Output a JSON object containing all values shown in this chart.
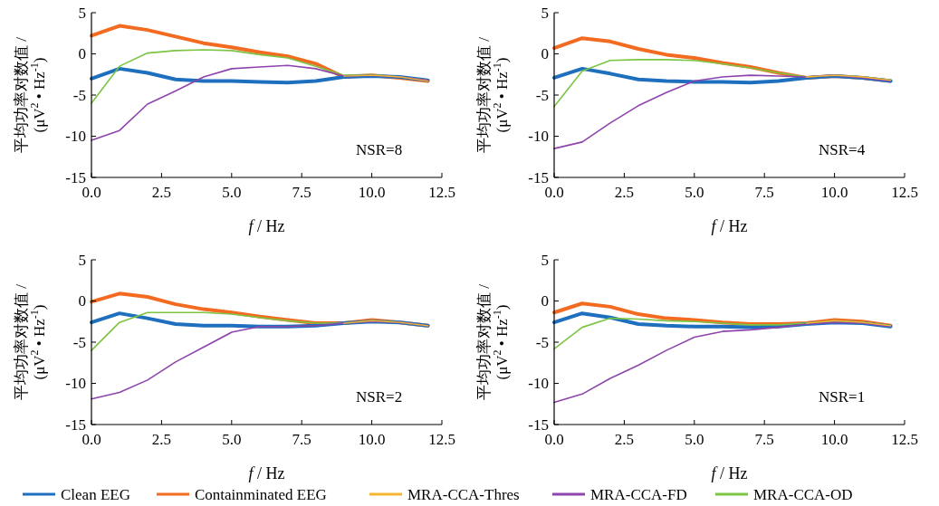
{
  "chart_data": [
    {
      "type": "line",
      "ylabel": "平均功率对数值 / (μV$^{2}$ • Hz$^{-1}$)",
      "xlabel": "f / Hz",
      "annotations": [
        "NSR=8"
      ],
      "x": [
        0,
        1,
        2,
        3,
        4,
        5,
        6,
        7,
        8,
        9,
        10,
        11,
        12
      ],
      "xlim": [
        0,
        12.5
      ],
      "ylim": [
        -15,
        5
      ],
      "xticks": [
        {
          "value": 0,
          "label": "0.0"
        },
        {
          "value": 2.5,
          "label": "2.5"
        },
        {
          "value": 5,
          "label": "5.0"
        },
        {
          "value": 7.5,
          "label": "7.5"
        },
        {
          "value": 10,
          "label": "10.0"
        },
        {
          "value": 12.5,
          "label": "12.5"
        }
      ],
      "yticks": [
        -15,
        -10,
        -5,
        0,
        5
      ],
      "legend": "bottom",
      "series": [
        {
          "name": "Clean EEG",
          "color": "#1f6fbf",
          "values": [
            -3,
            -1.8,
            -2.3,
            -3.1,
            -3.3,
            -3.3,
            -3.4,
            -3.5,
            -3.3,
            -2.8,
            -2.7,
            -2.8,
            -3.2
          ]
        },
        {
          "name": "Containminated EEG",
          "color": "#f26b21",
          "values": [
            2.2,
            3.4,
            2.9,
            2.1,
            1.3,
            0.8,
            0.2,
            -0.3,
            -1.2,
            -2.8,
            -2.6,
            -2.9,
            -3.3
          ]
        },
        {
          "name": "MRA-CCA-Thres",
          "color": "#f5b731",
          "values": [
            null,
            null,
            null,
            null,
            null,
            null,
            null,
            null,
            null,
            -2.7,
            -2.6,
            -2.8,
            -3.3
          ]
        },
        {
          "name": "MRA-CCA-FD",
          "color": "#8e44ad",
          "values": [
            -10.5,
            -9.3,
            -6.1,
            -4.5,
            -2.8,
            -1.8,
            -1.6,
            -1.4,
            -1.8,
            -2.7,
            -2.6,
            -2.8,
            -3.2
          ]
        },
        {
          "name": "MRA-CCA-OD",
          "color": "#7cc444",
          "values": [
            -6,
            -1.5,
            0.1,
            0.4,
            0.5,
            0.4,
            -0.1,
            -0.5,
            -1.5,
            -2.6,
            -2.5,
            -2.8,
            -3.2
          ]
        }
      ]
    },
    {
      "type": "line",
      "ylabel": "平均功率对数值 / (μV$^{2}$ • Hz$^{-1}$)",
      "xlabel": "f / Hz",
      "annotations": [
        "NSR=4"
      ],
      "x": [
        0,
        1,
        2,
        3,
        4,
        5,
        6,
        7,
        8,
        9,
        10,
        11,
        12
      ],
      "xlim": [
        0,
        12.5
      ],
      "ylim": [
        -15,
        5
      ],
      "xticks": [
        {
          "value": 0,
          "label": "0.0"
        },
        {
          "value": 2.5,
          "label": "2.5"
        },
        {
          "value": 5,
          "label": "5.0"
        },
        {
          "value": 7.5,
          "label": "7.5"
        },
        {
          "value": 10,
          "label": "10.0"
        },
        {
          "value": 12.5,
          "label": "12.5"
        }
      ],
      "yticks": [
        -15,
        -10,
        -5,
        0,
        5
      ],
      "series": [
        {
          "color": "#1f6fbf",
          "values": [
            -2.9,
            -1.8,
            -2.4,
            -3.1,
            -3.3,
            -3.4,
            -3.4,
            -3.5,
            -3.3,
            -2.9,
            -2.7,
            -2.9,
            -3.3
          ]
        },
        {
          "color": "#f26b21",
          "values": [
            0.7,
            1.9,
            1.5,
            0.6,
            -0.1,
            -0.5,
            -1.1,
            -1.6,
            -2.3,
            -2.9,
            -2.7,
            -2.9,
            -3.3
          ]
        },
        {
          "color": "#f5b731",
          "values": [
            null,
            null,
            null,
            null,
            null,
            null,
            null,
            null,
            null,
            -2.8,
            -2.6,
            -2.8,
            -3.2
          ]
        },
        {
          "color": "#8e44ad",
          "values": [
            -11.5,
            -10.7,
            -8.4,
            -6.3,
            -4.7,
            -3.3,
            -2.8,
            -2.6,
            -2.7,
            -2.8,
            -2.6,
            -2.9,
            -3.3
          ]
        },
        {
          "color": "#7cc444",
          "values": [
            -6.4,
            -2.1,
            -0.8,
            -0.7,
            -0.7,
            -0.8,
            -1.2,
            -1.7,
            -2.3,
            -2.8,
            -2.6,
            -2.8,
            -3.2
          ]
        }
      ]
    },
    {
      "type": "line",
      "ylabel": "平均功率对数值 / (μV$^{2}$ • Hz$^{-1}$)",
      "xlabel": "f / Hz",
      "annotations": [
        "NSR=2"
      ],
      "x": [
        0,
        1,
        2,
        3,
        4,
        5,
        6,
        7,
        8,
        9,
        10,
        11,
        12
      ],
      "xlim": [
        0,
        12.5
      ],
      "ylim": [
        -15,
        5
      ],
      "xticks": [
        {
          "value": 0,
          "label": "0.0"
        },
        {
          "value": 2.5,
          "label": "2.5"
        },
        {
          "value": 5,
          "label": "5.0"
        },
        {
          "value": 7.5,
          "label": "7.5"
        },
        {
          "value": 10,
          "label": "10.0"
        },
        {
          "value": 12.5,
          "label": "12.5"
        }
      ],
      "yticks": [
        -15,
        -10,
        -5,
        0,
        5
      ],
      "series": [
        {
          "color": "#1f6fbf",
          "values": [
            -2.6,
            -1.5,
            -2.1,
            -2.8,
            -3,
            -3,
            -3.1,
            -3.1,
            -3,
            -2.7,
            -2.5,
            -2.6,
            -3
          ]
        },
        {
          "color": "#f26b21",
          "values": [
            -0.1,
            0.9,
            0.5,
            -0.4,
            -1,
            -1.4,
            -1.9,
            -2.3,
            -2.7,
            -2.7,
            -2.3,
            -2.6,
            -3
          ]
        },
        {
          "color": "#f5b731",
          "values": [
            null,
            null,
            null,
            null,
            null,
            null,
            null,
            null,
            null,
            -2.7,
            -2.4,
            -2.6,
            -3
          ]
        },
        {
          "color": "#8e44ad",
          "values": [
            -11.9,
            -11.1,
            -9.6,
            -7.4,
            -5.6,
            -3.8,
            -3.1,
            -3.1,
            -3,
            -2.7,
            -2.5,
            -2.6,
            -3
          ]
        },
        {
          "color": "#7cc444",
          "values": [
            -6,
            -2.6,
            -1.4,
            -1.4,
            -1.4,
            -1.6,
            -2,
            -2.4,
            -2.7,
            -2.7,
            -2.4,
            -2.6,
            -3
          ]
        }
      ]
    },
    {
      "type": "line",
      "ylabel": "平均功率对数值 / (μV$^{2}$ • Hz$^{-1}$)",
      "xlabel": "f / Hz",
      "annotations": [
        "NSR=1"
      ],
      "x": [
        0,
        1,
        2,
        3,
        4,
        5,
        6,
        7,
        8,
        9,
        10,
        11,
        12
      ],
      "xlim": [
        0,
        12.5
      ],
      "ylim": [
        -15,
        5
      ],
      "xticks": [
        {
          "value": 0,
          "label": "0.0"
        },
        {
          "value": 2.5,
          "label": "2.5"
        },
        {
          "value": 5,
          "label": "5.0"
        },
        {
          "value": 7.5,
          "label": "7.5"
        },
        {
          "value": 10,
          "label": "10.0"
        },
        {
          "value": 12.5,
          "label": "12.5"
        }
      ],
      "yticks": [
        -15,
        -10,
        -5,
        0,
        5
      ],
      "series": [
        {
          "color": "#1f6fbf",
          "values": [
            -2.6,
            -1.5,
            -2,
            -2.8,
            -3,
            -3.1,
            -3.1,
            -3.2,
            -3.1,
            -2.8,
            -2.6,
            -2.7,
            -3.1
          ]
        },
        {
          "color": "#f26b21",
          "values": [
            -1.4,
            -0.3,
            -0.7,
            -1.6,
            -2.1,
            -2.3,
            -2.6,
            -2.8,
            -2.8,
            -2.7,
            -2.3,
            -2.5,
            -3
          ]
        },
        {
          "color": "#f5b731",
          "values": [
            null,
            null,
            null,
            null,
            null,
            null,
            null,
            null,
            null,
            -2.7,
            -2.4,
            -2.6,
            -3
          ]
        },
        {
          "color": "#8e44ad",
          "values": [
            -12.3,
            -11.3,
            -9.4,
            -7.8,
            -6,
            -4.4,
            -3.7,
            -3.5,
            -3.2,
            -2.8,
            -2.6,
            -2.7,
            -3.1
          ]
        },
        {
          "color": "#7cc444",
          "values": [
            -5.8,
            -3.2,
            -2.1,
            -2.2,
            -2.4,
            -2.5,
            -2.7,
            -2.9,
            -2.9,
            -2.7,
            -2.4,
            -2.6,
            -3
          ]
        }
      ]
    }
  ]
}
